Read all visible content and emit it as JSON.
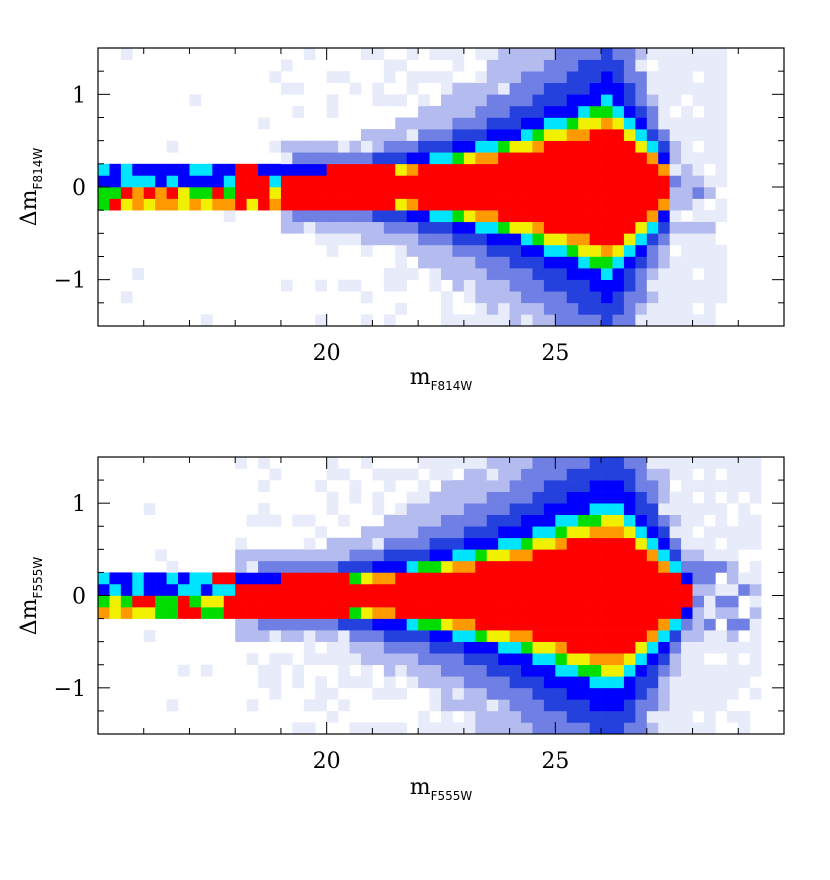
{
  "chart_data": [
    {
      "type": "heatmap",
      "xlabel": {
        "main": "m",
        "sub": "F814W"
      },
      "ylabel": {
        "main": "Δm",
        "sub": "F814W"
      },
      "xlim": [
        15,
        30
      ],
      "ylim": [
        -1.5,
        1.5
      ],
      "xticks": [
        20,
        25
      ],
      "yticks": [
        -1,
        0,
        1
      ],
      "xtick_labels": [
        "20",
        "25"
      ],
      "ytick_labels": [
        "−1",
        "0",
        "1"
      ],
      "grid": false,
      "colormap": [
        "#e8ebfa",
        "#b4bcef",
        "#6f7fe4",
        "#2440dd",
        "#0000ff",
        "#00e5ff",
        "#00dd00",
        "#f0f000",
        "#ff9900",
        "#ff0000"
      ],
      "density_model": {
        "bright_seq_upper": 0.1,
        "bright_seq_lower": -0.1,
        "turnoff_mag": 19.0,
        "peak_mag": 26.2,
        "limit_mag": 27.6,
        "spread_at_peak": 0.55,
        "max_mag": 28.8
      }
    },
    {
      "type": "heatmap",
      "xlabel": {
        "main": "m",
        "sub": "F555W"
      },
      "ylabel": {
        "main": "Δm",
        "sub": "F555W"
      },
      "xlim": [
        15,
        30
      ],
      "ylim": [
        -1.5,
        1.5
      ],
      "xticks": [
        20,
        25
      ],
      "yticks": [
        -1,
        0,
        1
      ],
      "xtick_labels": [
        "20",
        "25"
      ],
      "ytick_labels": [
        "−1",
        "0",
        "1"
      ],
      "grid": false,
      "colormap": [
        "#e8ebfa",
        "#b4bcef",
        "#6f7fe4",
        "#2440dd",
        "#0000ff",
        "#00e5ff",
        "#00dd00",
        "#f0f000",
        "#ff9900",
        "#ff0000"
      ],
      "density_model": {
        "bright_seq_upper": 0.1,
        "bright_seq_lower": -0.1,
        "turnoff_mag": 18.0,
        "peak_mag": 26.3,
        "limit_mag": 27.9,
        "spread_at_peak": 0.6,
        "max_mag": 29.6
      }
    }
  ]
}
